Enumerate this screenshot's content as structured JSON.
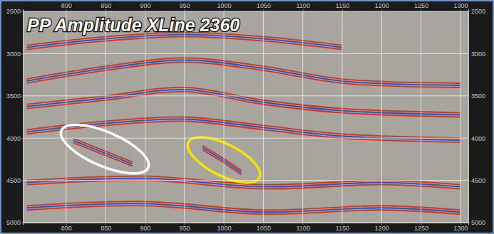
{
  "chart_data": {
    "type": "seismic",
    "title": "PP Amplitude XLine 2360",
    "xlim": [
      745,
      1310
    ],
    "ylim": [
      2500,
      5000
    ],
    "xticks": [
      800,
      850,
      900,
      950,
      1000,
      1050,
      1100,
      1150,
      1200,
      1250,
      1300
    ],
    "yticks": [
      2500,
      3000,
      3500,
      4000,
      4500,
      5000
    ],
    "grid": true,
    "horizons": [
      {
        "x": [
          750,
          850,
          950,
          1050,
          1150
        ],
        "y": [
          2900,
          2800,
          2750,
          2800,
          2900
        ]
      },
      {
        "x": [
          750,
          850,
          950,
          1050,
          1150,
          1300
        ],
        "y": [
          3300,
          3150,
          3050,
          3150,
          3300,
          3350
        ]
      },
      {
        "x": [
          750,
          850,
          950,
          1050,
          1150,
          1300
        ],
        "y": [
          3600,
          3500,
          3400,
          3550,
          3650,
          3700
        ]
      },
      {
        "x": [
          750,
          850,
          950,
          1050,
          1150,
          1300
        ],
        "y": [
          3900,
          3800,
          3750,
          3850,
          3950,
          4000
        ]
      },
      {
        "x": [
          809,
          846,
          884
        ],
        "y": [
          4003,
          4140,
          4282
        ]
      },
      {
        "x": [
          973,
          998,
          1022
        ],
        "y": [
          4088,
          4230,
          4383
        ]
      },
      {
        "x": [
          750,
          900,
          1050,
          1200,
          1300
        ],
        "y": [
          4500,
          4450,
          4550,
          4500,
          4550
        ]
      },
      {
        "x": [
          750,
          900,
          1050,
          1200,
          1300
        ],
        "y": [
          4800,
          4750,
          4850,
          4800,
          4850
        ]
      }
    ],
    "annotations": [
      {
        "type": "ellipse",
        "color": "#ffffff",
        "cx": 849,
        "cy": 4130,
        "rx": 55,
        "ry": 220
      },
      {
        "type": "ellipse",
        "color": "#f5e600",
        "cx": 1000,
        "cy": 4257,
        "rx": 45,
        "ry": 210
      }
    ]
  }
}
